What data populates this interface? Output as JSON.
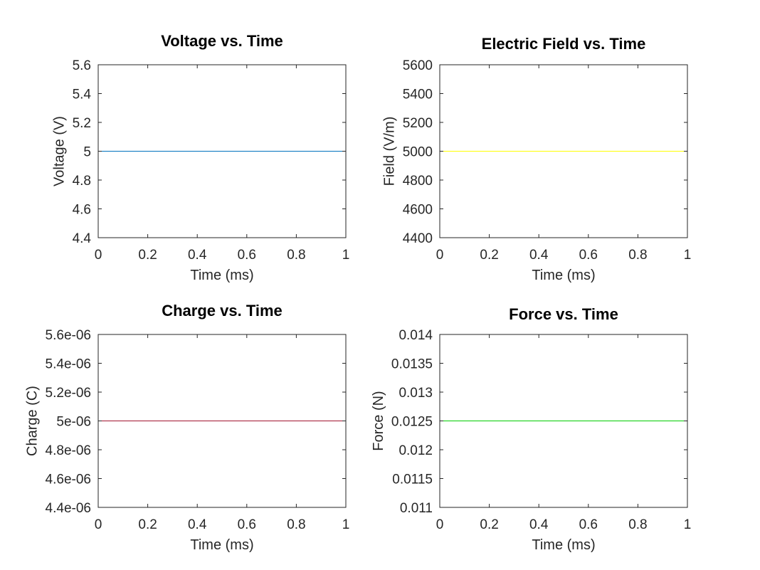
{
  "chart_data": [
    {
      "type": "line",
      "title": "Voltage vs. Time",
      "xlabel": "Time (ms)",
      "ylabel": "Voltage (V)",
      "xlim": [
        0,
        1
      ],
      "ylim": [
        4.4,
        5.6
      ],
      "xticks": [
        0,
        0.2,
        0.4,
        0.6,
        0.8,
        1
      ],
      "xtick_labels": [
        "0",
        "0.2",
        "0.4",
        "0.6",
        "0.8",
        "1"
      ],
      "yticks": [
        4.4,
        4.6,
        4.8,
        5,
        5.2,
        5.4,
        5.6
      ],
      "ytick_labels": [
        "4.4",
        "4.6",
        "4.8",
        "5",
        "5.2",
        "5.4",
        "5.6"
      ],
      "grid": false,
      "series": [
        {
          "color": "#0072bd",
          "x": [
            0,
            1
          ],
          "y": [
            5,
            5
          ]
        }
      ]
    },
    {
      "type": "line",
      "title": "Electric Field vs. Time",
      "xlabel": "Time (ms)",
      "ylabel": "Field (V/m)",
      "xlim": [
        0,
        1
      ],
      "ylim": [
        4400,
        5600
      ],
      "xticks": [
        0,
        0.2,
        0.4,
        0.6,
        0.8,
        1
      ],
      "xtick_labels": [
        "0",
        "0.2",
        "0.4",
        "0.6",
        "0.8",
        "1"
      ],
      "yticks": [
        4400,
        4600,
        4800,
        5000,
        5200,
        5400,
        5600
      ],
      "ytick_labels": [
        "4400",
        "4600",
        "4800",
        "5000",
        "5200",
        "5400",
        "5600"
      ],
      "grid": false,
      "series": [
        {
          "color": "#ffff00",
          "x": [
            0,
            1
          ],
          "y": [
            5000,
            5000
          ]
        }
      ]
    },
    {
      "type": "line",
      "title": "Charge vs. Time",
      "xlabel": "Time (ms)",
      "ylabel": "Charge (C)",
      "xlim": [
        0,
        1
      ],
      "ylim": [
        4.4e-06,
        5.6e-06
      ],
      "xticks": [
        0,
        0.2,
        0.4,
        0.6,
        0.8,
        1
      ],
      "xtick_labels": [
        "0",
        "0.2",
        "0.4",
        "0.6",
        "0.8",
        "1"
      ],
      "yticks": [
        4.4e-06,
        4.6e-06,
        4.8e-06,
        5e-06,
        5.2e-06,
        5.4e-06,
        5.6e-06
      ],
      "ytick_labels": [
        "4.4e-06",
        "4.6e-06",
        "4.8e-06",
        "5e-06",
        "5.2e-06",
        "5.4e-06",
        "5.6e-06"
      ],
      "grid": false,
      "series": [
        {
          "color": "#a2142f",
          "x": [
            0,
            1
          ],
          "y": [
            5e-06,
            5e-06
          ]
        }
      ]
    },
    {
      "type": "line",
      "title": "Force vs. Time",
      "xlabel": "Time (ms)",
      "ylabel": "Force (N)",
      "xlim": [
        0,
        1
      ],
      "ylim": [
        0.011,
        0.014
      ],
      "xticks": [
        0,
        0.2,
        0.4,
        0.6,
        0.8,
        1
      ],
      "xtick_labels": [
        "0",
        "0.2",
        "0.4",
        "0.6",
        "0.8",
        "1"
      ],
      "yticks": [
        0.011,
        0.0115,
        0.012,
        0.0125,
        0.013,
        0.0135,
        0.014
      ],
      "ytick_labels": [
        "0.011",
        "0.0115",
        "0.012",
        "0.0125",
        "0.013",
        "0.0135",
        "0.014"
      ],
      "grid": false,
      "series": [
        {
          "color": "#00cc00",
          "x": [
            0,
            1
          ],
          "y": [
            0.0125,
            0.0125
          ]
        }
      ]
    }
  ]
}
